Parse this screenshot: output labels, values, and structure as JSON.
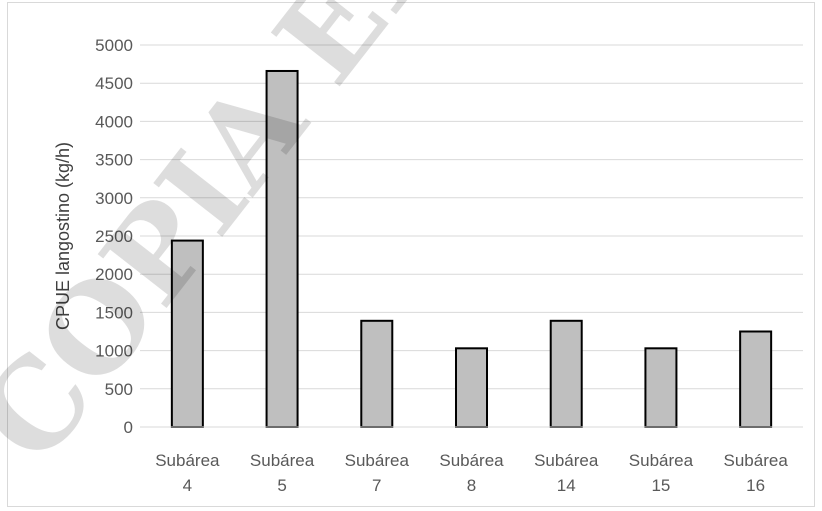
{
  "chart_data": {
    "type": "bar",
    "categories": [
      [
        "Subárea",
        "4"
      ],
      [
        "Subárea",
        "5"
      ],
      [
        "Subárea",
        "7"
      ],
      [
        "Subárea",
        "8"
      ],
      [
        "Subárea",
        "14"
      ],
      [
        "Subárea",
        "15"
      ],
      [
        "Subárea",
        "16"
      ]
    ],
    "values": [
      2440,
      4660,
      1390,
      1030,
      1390,
      1030,
      1250
    ],
    "ylabel": "CPUE langostino (kg/h)",
    "ylim": [
      0,
      5000
    ],
    "yticks": [
      0,
      500,
      1000,
      1500,
      2000,
      2500,
      3000,
      3500,
      4000,
      4500,
      5000
    ],
    "grid": true,
    "colors": {
      "bar_fill": "#bfbfbf",
      "bar_stroke": "#000000",
      "grid": "#d9d9d9",
      "text": "#595959"
    }
  },
  "watermark": {
    "text": "COPIA ELECTRÓNICA"
  }
}
